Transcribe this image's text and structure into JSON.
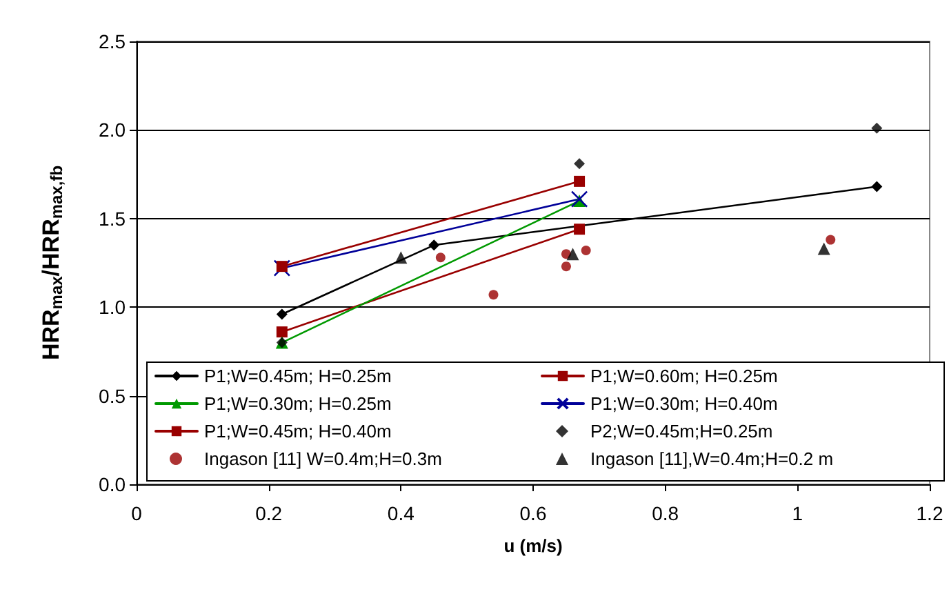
{
  "chart_data": {
    "type": "line",
    "xlabel": "u (m/s)",
    "ylabel": "HRR$_{max}$/HRR$_{max,fb}$",
    "xlim": [
      0,
      1.2
    ],
    "xticks": [
      0,
      0.2,
      0.4,
      0.6,
      0.8,
      1,
      1.2
    ],
    "ylim": [
      0,
      2.5
    ],
    "yticks": [
      {
        "value": 0,
        "label": "0.0"
      },
      {
        "value": 0.5,
        "label": "0.5"
      },
      {
        "value": 1,
        "label": "1.0"
      },
      {
        "value": 1.5,
        "label": "1.5"
      },
      {
        "value": 2,
        "label": "2.0"
      },
      {
        "value": 2.5,
        "label": "2.5"
      }
    ],
    "grid": "y",
    "legend": "bottom",
    "line_style": "solid",
    "series": [
      {
        "name": "P1;W=0.45m; H=0.25m",
        "color": "#000000",
        "marker": "diamond",
        "x": [
          0.22,
          0.45,
          1.12
        ],
        "values": [
          0.96,
          1.35,
          1.68
        ]
      },
      {
        "name": "P1;W=0.60m; H=0.25m",
        "color": "#990000",
        "marker": "square",
        "x": [
          0.22,
          0.67
        ],
        "values": [
          0.86,
          1.44
        ]
      },
      {
        "name": "P1;W=0.30m; H=0.25m",
        "color": "#009900",
        "marker": "triangle",
        "x": [
          0.22,
          0.67
        ],
        "values": [
          0.8,
          1.6
        ]
      },
      {
        "name": "P1;W=0.30m; H=0.40m",
        "color": "#000099",
        "marker": "cross",
        "x": [
          0.22,
          0.67
        ],
        "values": [
          1.22,
          1.61
        ]
      },
      {
        "name": "P1;W=0.45m; H=0.40m",
        "color": "#990000",
        "marker": "square",
        "x": [
          0.22,
          0.67
        ],
        "values": [
          1.23,
          1.71
        ]
      },
      {
        "name": "P2;W=0.45m;H=0.25m",
        "type": "scatter",
        "color": "#000000",
        "marker": "diamond",
        "x": [
          0.22,
          0.67,
          1.12
        ],
        "values": [
          0.8,
          1.81,
          2.01
        ]
      },
      {
        "name": "Ingason [11] W=0.4m;H=0.3m",
        "type": "scatter",
        "color": "#990000",
        "marker": "circle",
        "x": [
          0.46,
          0.54,
          0.65,
          0.65,
          0.68,
          1.05
        ],
        "values": [
          1.28,
          1.07,
          1.23,
          1.3,
          1.32,
          1.38
        ]
      },
      {
        "name": "Ingason [11],W=0.4m;H=0.2 m",
        "type": "scatter",
        "color": "#000000",
        "marker": "triangle",
        "x": [
          0.4,
          0.66,
          1.04
        ],
        "values": [
          1.28,
          1.3,
          1.33
        ]
      }
    ]
  }
}
